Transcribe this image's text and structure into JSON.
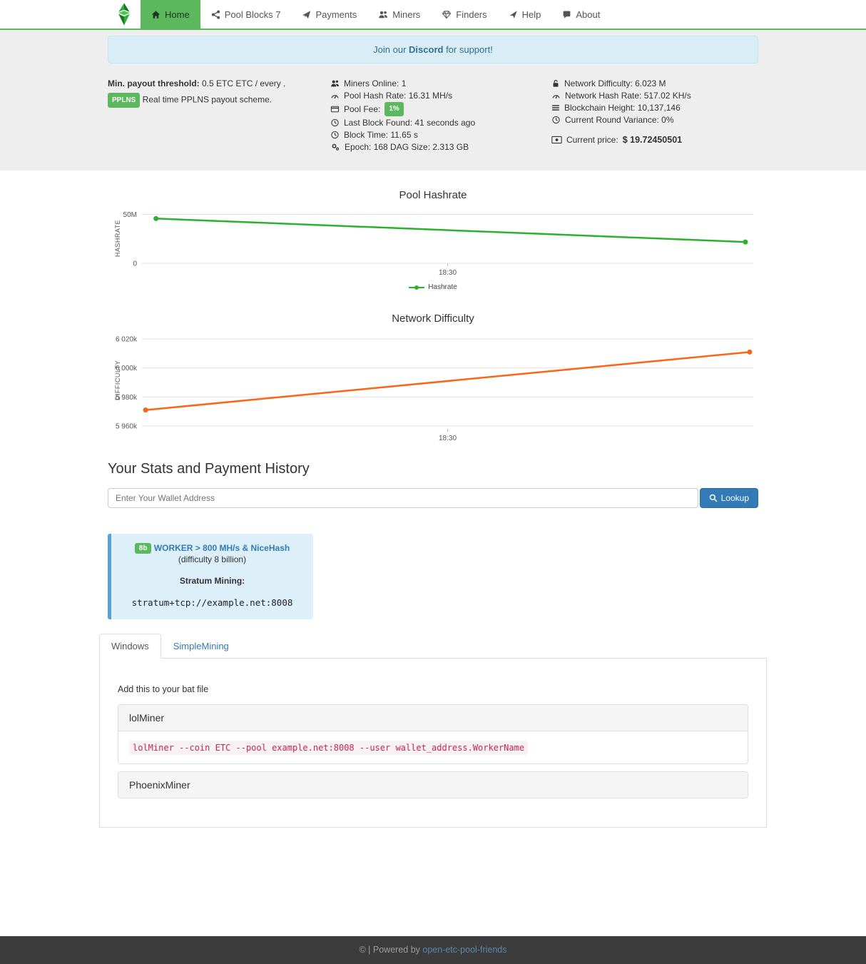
{
  "nav": {
    "brand_icon": "etc-diamond-logo",
    "items": [
      {
        "label": "Home",
        "icon": "home",
        "active": true
      },
      {
        "label": "Pool Blocks 7",
        "icon": "share-nodes"
      },
      {
        "label": "Payments",
        "icon": "paper-plane"
      },
      {
        "label": "Miners",
        "icon": "users"
      },
      {
        "label": "Finders",
        "icon": "gem"
      },
      {
        "label": "Help",
        "icon": "location-arrow"
      },
      {
        "label": "About",
        "icon": "comment"
      }
    ]
  },
  "banner": {
    "prefix": "Join our ",
    "link_text": "Discord",
    "suffix": " for support!"
  },
  "stats": {
    "payout_line": {
      "label": "Min. payout threshold:",
      "value": " 0.5 ETC ETC / every .",
      "badge": "PPLNS",
      "scheme": " Real time PPLNS payout scheme."
    },
    "pool_column": [
      {
        "icon": "users",
        "text": "Miners Online: 1"
      },
      {
        "icon": "gauge",
        "text": "Pool Hash Rate: 16.31 MH/s"
      },
      {
        "icon": "credit-card",
        "text": "Pool Fee:",
        "badge": "1%"
      },
      {
        "icon": "clock",
        "text": "Last Block Found: 41 seconds ago"
      },
      {
        "icon": "clock",
        "text": "Block Time: 11.65 s"
      },
      {
        "icon": "cogs",
        "text": "Epoch: 168 DAG Size: 2.313 GB"
      }
    ],
    "network_column": [
      {
        "icon": "lock",
        "text": "Network Difficulty: 6.023 M"
      },
      {
        "icon": "gauge",
        "text": "Network Hash Rate: 517.02 KH/s"
      },
      {
        "icon": "bars",
        "text": "Blockchain Height: 10,137,146"
      },
      {
        "icon": "clock",
        "text": "Current Round Variance: 0%"
      }
    ],
    "price_row": {
      "icon": "money",
      "label": "Current price:",
      "value": " $ 19.72450501"
    }
  },
  "chart_data": [
    {
      "type": "line",
      "title": "Pool Hashrate",
      "ylabel": "HASHRATE",
      "xlabel": "",
      "ylim": [
        0,
        55500000
      ],
      "grid": true,
      "legend_position": "bottom",
      "y_ticks": [
        {
          "label": "50M",
          "value": 50000000
        },
        {
          "label": "0",
          "value": 0
        }
      ],
      "x_ticks": [
        {
          "label": "18:30",
          "x": 0.5
        }
      ],
      "series": [
        {
          "name": "Hashrate",
          "color": "#2db12d",
          "points": [
            {
              "x": 0.023,
              "y": 45800000
            },
            {
              "x": 0.987,
              "y": 21800000
            }
          ]
        }
      ]
    },
    {
      "type": "line",
      "title": "Network Difficulty",
      "ylabel": "DIFFICULTY",
      "xlabel": "",
      "ylim": [
        5958000,
        6024000
      ],
      "grid": true,
      "legend_position": "none",
      "y_ticks": [
        {
          "label": "6 020k",
          "value": 6020000
        },
        {
          "label": "6 000k",
          "value": 6000000
        },
        {
          "label": "5 980k",
          "value": 5980000
        },
        {
          "label": "5 960k",
          "value": 5960000
        }
      ],
      "x_ticks": [
        {
          "label": "18:30",
          "x": 0.5
        }
      ],
      "series": [
        {
          "name": "Difficulty",
          "color": "#fb6517",
          "points": [
            {
              "x": 0.006,
              "y": 5971000
            },
            {
              "x": 0.994,
              "y": 6011000
            }
          ]
        }
      ]
    }
  ],
  "lookup": {
    "heading": "Your Stats and Payment History",
    "placeholder": "Enter Your Wallet Address",
    "button_label": "Lookup"
  },
  "worker_box": {
    "badge": "8b",
    "title": "WORKER > 800 MH/s & NiceHash",
    "subtitle": "(difficulty 8 billion)",
    "stratum_label": "Stratum Mining:",
    "stratum_url": "stratum+tcp://example.net:8008"
  },
  "miner_tabs": {
    "tabs": [
      {
        "label": "Windows",
        "active": true
      },
      {
        "label": "SimpleMining",
        "active": false
      }
    ],
    "panel_hint": "Add this to your bat file",
    "miners": [
      {
        "name": "lolMiner",
        "command": "lolMiner --coin ETC --pool example.net:8008 --user wallet_address.WorkerName"
      },
      {
        "name": "PhoenixMiner",
        "command": ""
      }
    ]
  },
  "footer": {
    "text": "© | Powered by ",
    "link_text": "open-etc-pool-friends"
  }
}
